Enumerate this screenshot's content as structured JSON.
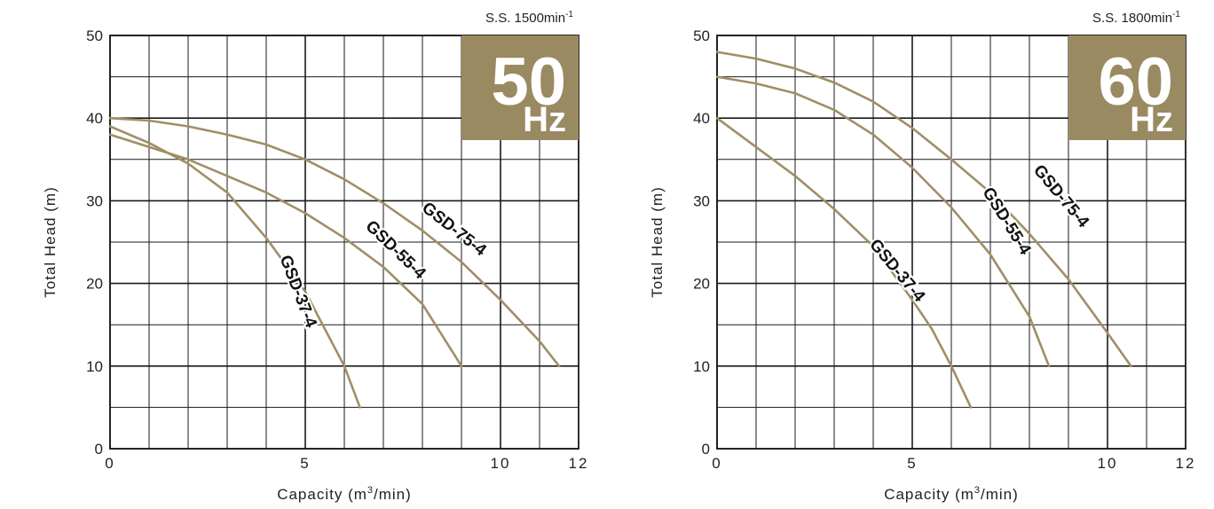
{
  "chart_data": [
    {
      "type": "line",
      "title": "",
      "corner_label": "S.S. 1500min",
      "corner_label_sup": "-1",
      "badge": {
        "number": "50",
        "unit": "Hz",
        "color": "#9a8a62"
      },
      "xlabel": "Capacity (m",
      "xlabel_sup": "3",
      "xlabel_tail": "/min)",
      "ylabel": "Total Head (m)",
      "xlim": [
        0,
        12
      ],
      "ylim": [
        0,
        50
      ],
      "xticks": [
        0,
        5,
        10,
        12
      ],
      "yticks": [
        0,
        10,
        20,
        30,
        40,
        50
      ],
      "x_grid_step": 1,
      "y_grid_step": 5,
      "grid": true,
      "line_color": "#a08f66",
      "series": [
        {
          "name": "GSD-37-4",
          "label_at": {
            "x": 4.8,
            "y": 19,
            "angle": 69
          },
          "points": [
            [
              0,
              39
            ],
            [
              1,
              37
            ],
            [
              2,
              34.5
            ],
            [
              3,
              31
            ],
            [
              4,
              25.5
            ],
            [
              5,
              19
            ],
            [
              5.5,
              14.5
            ],
            [
              6,
              10
            ],
            [
              6.4,
              5
            ]
          ]
        },
        {
          "name": "GSD-55-4",
          "label_at": {
            "x": 7.3,
            "y": 24,
            "angle": 44
          },
          "points": [
            [
              0,
              38
            ],
            [
              1,
              36.5
            ],
            [
              2,
              35
            ],
            [
              3,
              33
            ],
            [
              4,
              31
            ],
            [
              5,
              28.5
            ],
            [
              6,
              25.5
            ],
            [
              7,
              22
            ],
            [
              8,
              17.5
            ],
            [
              9,
              10
            ]
          ]
        },
        {
          "name": "GSD-75-4",
          "label_at": {
            "x": 8.8,
            "y": 26.5,
            "angle": 38
          },
          "points": [
            [
              0,
              40
            ],
            [
              1,
              39.7
            ],
            [
              2,
              39
            ],
            [
              3,
              38
            ],
            [
              4,
              36.8
            ],
            [
              5,
              35
            ],
            [
              6,
              32.6
            ],
            [
              7,
              29.7
            ],
            [
              8,
              26.4
            ],
            [
              9,
              22.6
            ],
            [
              10,
              18
            ],
            [
              11,
              13
            ],
            [
              11.5,
              10
            ]
          ]
        }
      ]
    },
    {
      "type": "line",
      "title": "",
      "corner_label": "S.S. 1800min",
      "corner_label_sup": "-1",
      "badge": {
        "number": "60",
        "unit": "Hz",
        "color": "#9a8a62"
      },
      "xlabel": "Capacity (m",
      "xlabel_sup": "3",
      "xlabel_tail": "/min)",
      "ylabel": "Total Head (m)",
      "xlim": [
        0,
        12
      ],
      "ylim": [
        0,
        50
      ],
      "xticks": [
        0,
        5,
        10,
        12
      ],
      "yticks": [
        0,
        10,
        20,
        30,
        40,
        50
      ],
      "x_grid_step": 1,
      "y_grid_step": 5,
      "grid": true,
      "line_color": "#a08f66",
      "series": [
        {
          "name": "GSD-37-4",
          "label_at": {
            "x": 4.6,
            "y": 21.5,
            "angle": 50
          },
          "points": [
            [
              0,
              40
            ],
            [
              1,
              36.5
            ],
            [
              2,
              33
            ],
            [
              3,
              29
            ],
            [
              4,
              24.5
            ],
            [
              5,
              18
            ],
            [
              5.5,
              14.5
            ],
            [
              6,
              10
            ],
            [
              6.5,
              5
            ]
          ]
        },
        {
          "name": "GSD-55-4",
          "label_at": {
            "x": 7.4,
            "y": 27.5,
            "angle": 58
          },
          "points": [
            [
              0,
              45
            ],
            [
              1,
              44.2
            ],
            [
              2,
              43
            ],
            [
              3,
              41
            ],
            [
              4,
              38
            ],
            [
              5,
              34
            ],
            [
              6,
              29.2
            ],
            [
              7,
              23.5
            ],
            [
              8,
              16
            ],
            [
              8.5,
              10
            ]
          ]
        },
        {
          "name": "GSD-75-4",
          "label_at": {
            "x": 8.8,
            "y": 30.5,
            "angle": 50
          },
          "points": [
            [
              0,
              48
            ],
            [
              1,
              47.2
            ],
            [
              2,
              46
            ],
            [
              3,
              44.3
            ],
            [
              4,
              42
            ],
            [
              5,
              38.8
            ],
            [
              6,
              35
            ],
            [
              7,
              31
            ],
            [
              8,
              26
            ],
            [
              9,
              20.5
            ],
            [
              10,
              14
            ],
            [
              10.6,
              10
            ]
          ]
        }
      ]
    }
  ]
}
